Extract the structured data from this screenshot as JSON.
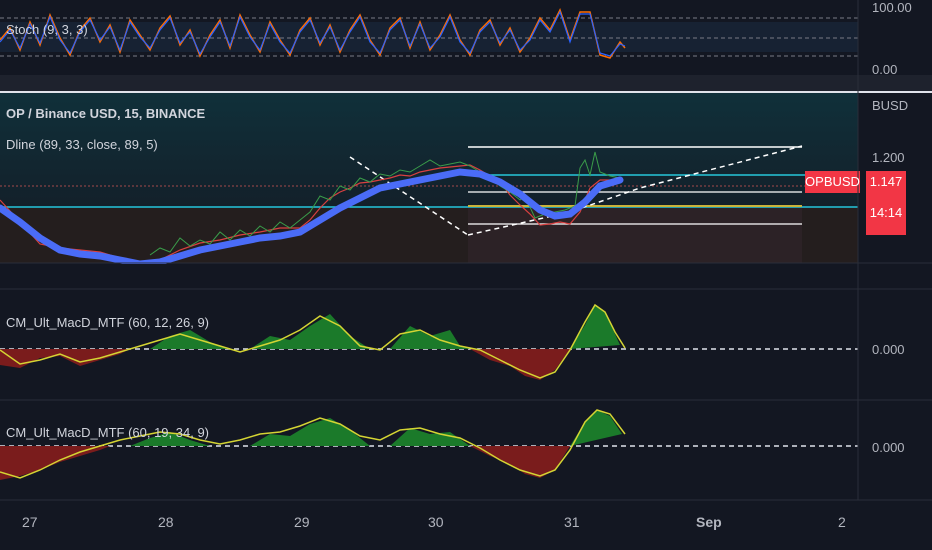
{
  "stoch": {
    "label": "Stoch (9, 3, 3)",
    "top_level": "100.00",
    "bottom_level": "0.00"
  },
  "main": {
    "title": "OP / Binance USD, 15, BINANCE",
    "indicator": "Dline (89, 33, close, 89, 5)",
    "currency": "BUSD",
    "level_1200": "1.200",
    "symbol_badge": "OPBUSD",
    "price": "1.147",
    "countdown": "14:14"
  },
  "macd1": {
    "label": "CM_Ult_MacD_MTF (60, 12, 26, 9)",
    "zero": "0.000"
  },
  "macd2": {
    "label": "CM_Ult_MacD_MTF (60, 19, 34, 9)",
    "zero": "0.000"
  },
  "time_axis": [
    "27",
    "28",
    "29",
    "30",
    "31",
    "Sep",
    "2"
  ],
  "colors": {
    "background": "#131722",
    "stoch_k": "#2962ff",
    "stoch_d": "#ff6d00",
    "dline": "#4a6cf7",
    "cyan_level": "#26c6da",
    "yellow_level": "#c9b33a",
    "macd_signal": "#d4d433",
    "macd_up": "#1b7a2a",
    "macd_down": "#7a1c1c",
    "price_badge": "#f23645"
  }
}
